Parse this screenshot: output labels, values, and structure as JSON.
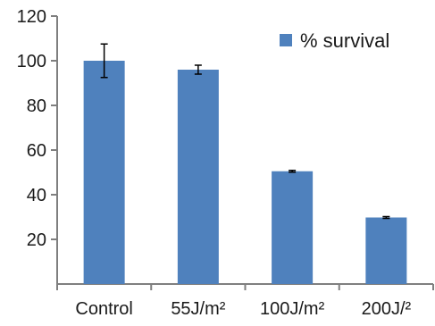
{
  "chart_data": {
    "type": "bar",
    "categories": [
      "Control",
      "55J/m²",
      "100J/m²",
      "200J/²"
    ],
    "series": [
      {
        "name": "% survival",
        "values": [
          100,
          96,
          50.5,
          29.8
        ],
        "errors": [
          7.5,
          2,
          0.4,
          0.4
        ]
      }
    ],
    "ylim": [
      0,
      120
    ],
    "yticks": [
      20,
      40,
      60,
      80,
      100,
      120
    ],
    "ytick_labels": [
      "20",
      "40",
      "60",
      "80",
      "100",
      "120"
    ],
    "grid": false,
    "legend_position": "top-right",
    "bar_color": "#4F81BD",
    "axis_color": "#7f7f7f",
    "text_color": "#1a1a1a"
  }
}
